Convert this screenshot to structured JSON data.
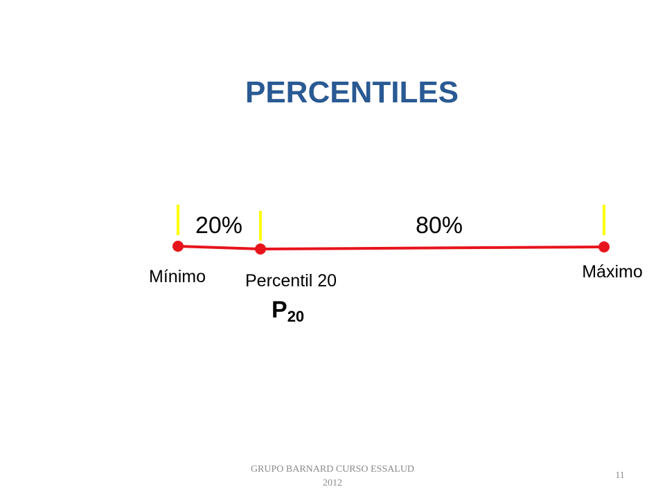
{
  "title": "PERCENTILES",
  "segments": [
    {
      "label": "20%"
    },
    {
      "label": "80%"
    }
  ],
  "points": [
    {
      "label": "Mínimo"
    },
    {
      "label": "Percentil 20"
    },
    {
      "label": "Máximo"
    }
  ],
  "symbol": {
    "base": "P",
    "subscript": "20"
  },
  "footer": {
    "lines": [
      "GRUPO BARNARD CURSO ESSALUD",
      "2012"
    ],
    "page": "11"
  }
}
